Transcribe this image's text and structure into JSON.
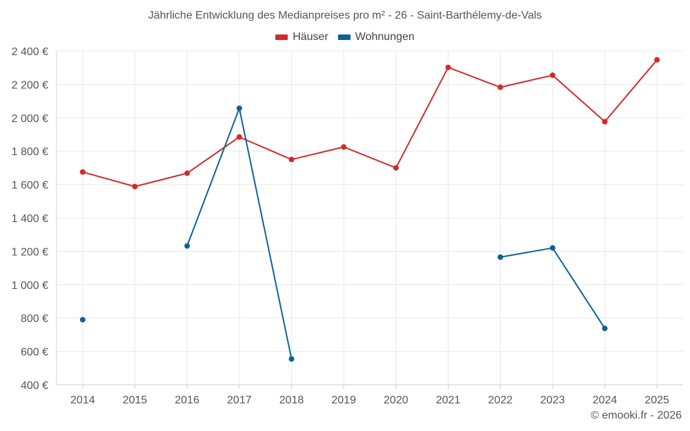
{
  "chart_data": {
    "type": "line",
    "title": "Jährliche Entwicklung des Medianpreises pro m² - 26 - Saint-Barthélemy-de-Vals",
    "xlabel": "",
    "ylabel": "",
    "categories": [
      "2014",
      "2015",
      "2016",
      "2017",
      "2018",
      "2019",
      "2020",
      "2021",
      "2022",
      "2023",
      "2024",
      "2025"
    ],
    "ylim": [
      400,
      2400
    ],
    "yticks": [
      400,
      600,
      800,
      1000,
      1200,
      1400,
      1600,
      1800,
      2000,
      2200,
      2400
    ],
    "ytick_labels": [
      "400 €",
      "600 €",
      "800 €",
      "1 000 €",
      "1 200 €",
      "1 400 €",
      "1 600 €",
      "1 800 €",
      "2 000 €",
      "2 200 €",
      "2 400 €"
    ],
    "grid": true,
    "legend_position": "top-center",
    "series": [
      {
        "name": "Häuser",
        "color": "#d32a2a",
        "values": [
          1675,
          1588,
          1668,
          1885,
          1750,
          1825,
          1700,
          2302,
          2183,
          2255,
          1977,
          2347
        ]
      },
      {
        "name": "Wohnungen",
        "color": "#0c6199",
        "values": [
          790,
          null,
          1232,
          2057,
          555,
          null,
          null,
          null,
          1165,
          1220,
          738,
          null
        ]
      }
    ]
  },
  "credit": "© emooki.fr - 2026"
}
